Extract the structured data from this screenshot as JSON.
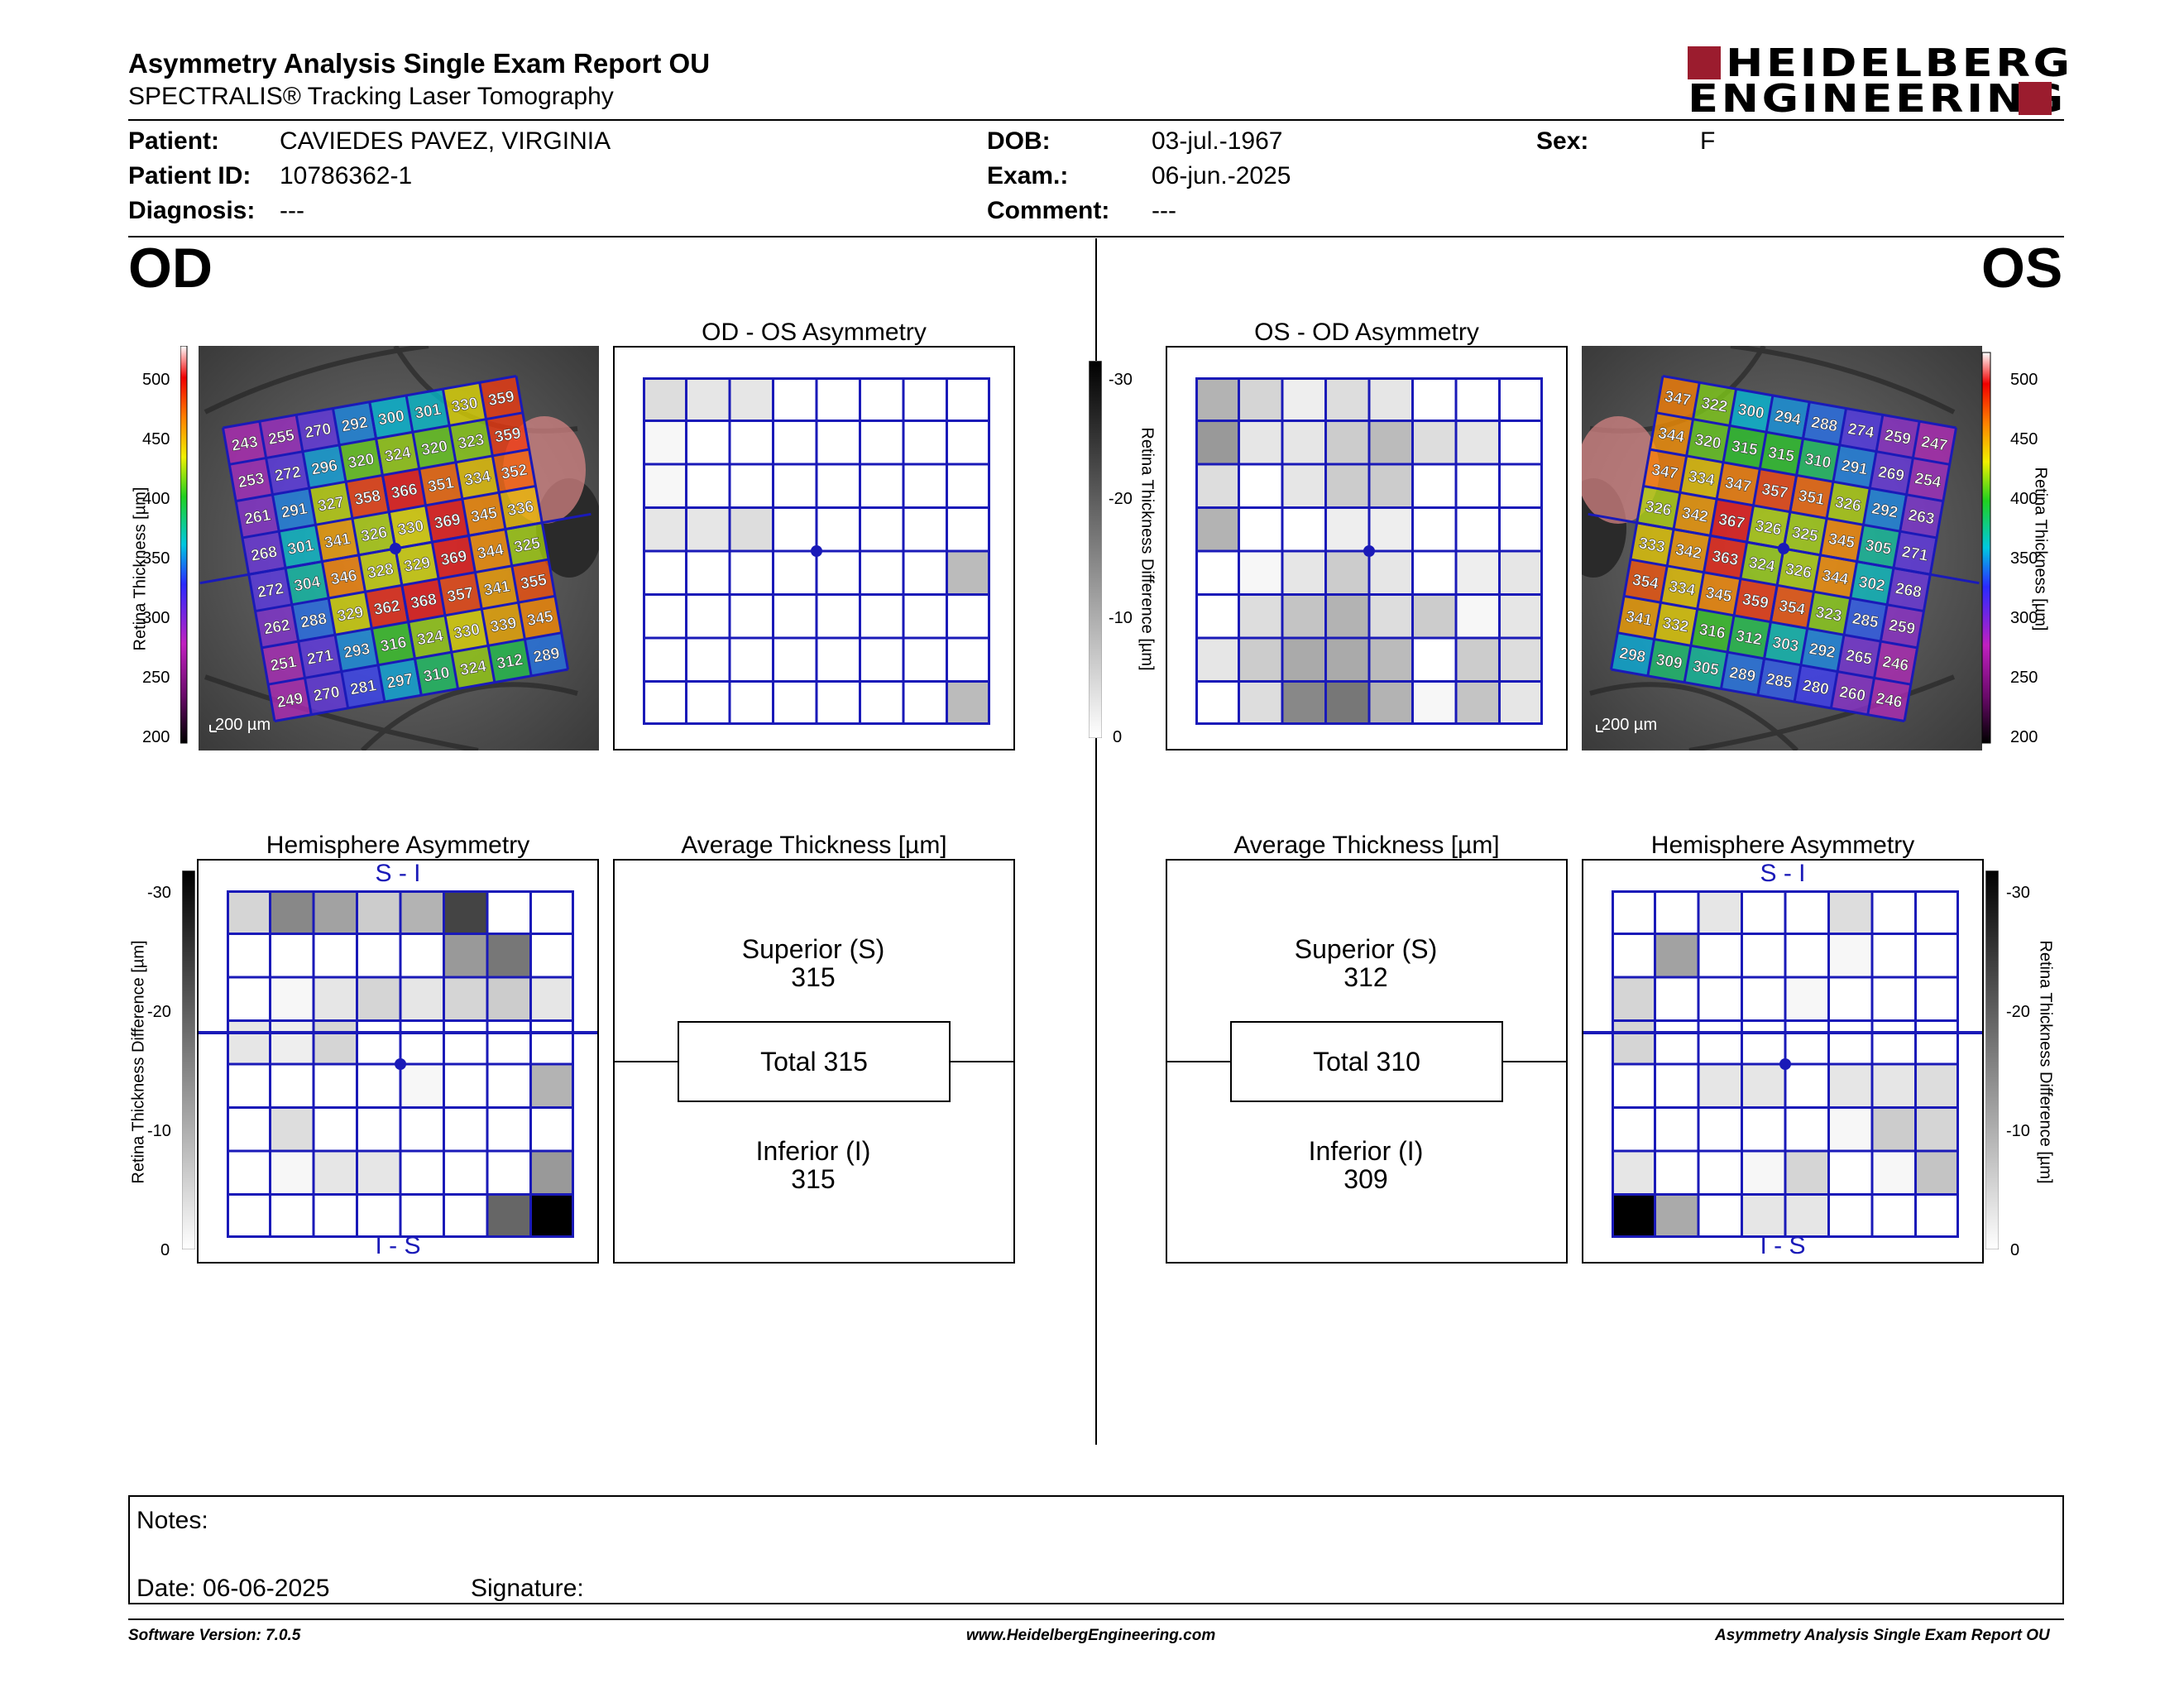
{
  "header": {
    "title": "Asymmetry Analysis Single Exam Report OU",
    "subtitle": "SPECTRALIS® Tracking Laser Tomography",
    "logo_line1": "HEIDELBERG",
    "logo_line2": "ENGINEERING"
  },
  "patient": {
    "patient_label": "Patient:",
    "patient_value": "CAVIEDES PAVEZ, VIRGINIA",
    "id_label": "Patient ID:",
    "id_value": "10786362-1",
    "diagnosis_label": "Diagnosis:",
    "diagnosis_value": "---",
    "dob_label": "DOB:",
    "dob_value": "03-jul.-1967",
    "exam_label": "Exam.:",
    "exam_value": "06-jun.-2025",
    "comment_label": "Comment:",
    "comment_value": "---",
    "sex_label": "Sex:",
    "sex_value": "F"
  },
  "od": {
    "eye_label": "OD",
    "asym_title": "OD - OS Asymmetry",
    "avg_title": "Average Thickness [µm]",
    "hemi_title": "Hemisphere Asymmetry",
    "superior_label": "Superior (S)",
    "superior_value": "315",
    "total_label": "Total 315",
    "inferior_label": "Inferior (I)",
    "inferior_value": "315",
    "hemi_top": "S - I",
    "hemi_bottom": "I - S",
    "scale_bar": "200 µm",
    "thickness_grid": [
      [
        243,
        255,
        270,
        292,
        300,
        301,
        330,
        359
      ],
      [
        253,
        272,
        296,
        320,
        324,
        320,
        323,
        359
      ],
      [
        261,
        291,
        327,
        358,
        366,
        351,
        334,
        352
      ],
      [
        268,
        301,
        341,
        326,
        330,
        369,
        345,
        336
      ],
      [
        272,
        304,
        346,
        328,
        329,
        369,
        344,
        325
      ],
      [
        262,
        288,
        329,
        362,
        368,
        357,
        341,
        355
      ],
      [
        251,
        271,
        293,
        316,
        324,
        330,
        339,
        345
      ],
      [
        249,
        270,
        281,
        297,
        310,
        324,
        312,
        289
      ]
    ],
    "asym_grid": [
      [
        4,
        3,
        3,
        0,
        0,
        0,
        0,
        0
      ],
      [
        1,
        0,
        0,
        0,
        0,
        0,
        0,
        0
      ],
      [
        1,
        0,
        0,
        0,
        0,
        0,
        0,
        0
      ],
      [
        3,
        3,
        4,
        0,
        0,
        0,
        0,
        0
      ],
      [
        0,
        0,
        0,
        0,
        0,
        0,
        0,
        8
      ],
      [
        0,
        0,
        0,
        0,
        0,
        0,
        0,
        0
      ],
      [
        0,
        0,
        0,
        0,
        0,
        0,
        0,
        0
      ],
      [
        0,
        0,
        0,
        0,
        0,
        0,
        0,
        8
      ]
    ],
    "hemi_grid": [
      [
        5,
        14,
        11,
        6,
        9,
        22,
        0,
        0
      ],
      [
        0,
        0,
        0,
        0,
        0,
        12,
        16,
        0
      ],
      [
        0,
        1,
        3,
        5,
        3,
        5,
        6,
        3
      ],
      [
        3,
        2,
        5,
        0,
        0,
        0,
        0,
        0
      ],
      [
        0,
        0,
        0,
        0,
        1,
        0,
        0,
        9
      ],
      [
        0,
        4,
        0,
        0,
        0,
        0,
        0,
        0
      ],
      [
        0,
        1,
        3,
        3,
        0,
        0,
        0,
        12
      ],
      [
        0,
        0,
        0,
        0,
        0,
        0,
        18,
        30
      ]
    ]
  },
  "os": {
    "eye_label": "OS",
    "asym_title": "OS - OD Asymmetry",
    "avg_title": "Average Thickness [µm]",
    "hemi_title": "Hemisphere Asymmetry",
    "superior_label": "Superior (S)",
    "superior_value": "312",
    "total_label": "Total 310",
    "inferior_label": "Inferior (I)",
    "inferior_value": "309",
    "hemi_top": "S - I",
    "hemi_bottom": "I - S",
    "scale_bar": "200 µm",
    "thickness_grid": [
      [
        347,
        322,
        300,
        294,
        288,
        274,
        259,
        247
      ],
      [
        344,
        320,
        315,
        315,
        310,
        291,
        269,
        254
      ],
      [
        347,
        334,
        347,
        357,
        351,
        326,
        292,
        263
      ],
      [
        326,
        342,
        367,
        326,
        325,
        345,
        305,
        271
      ],
      [
        333,
        342,
        363,
        324,
        326,
        344,
        302,
        268
      ],
      [
        354,
        334,
        345,
        359,
        354,
        323,
        285,
        259
      ],
      [
        341,
        332,
        316,
        312,
        303,
        292,
        265,
        246
      ],
      [
        298,
        309,
        305,
        289,
        285,
        280,
        260,
        246
      ]
    ],
    "asym_grid": [
      [
        9,
        5,
        2,
        4,
        3,
        0,
        0,
        0
      ],
      [
        12,
        3,
        3,
        6,
        8,
        4,
        3,
        0
      ],
      [
        4,
        0,
        3,
        6,
        6,
        0,
        0,
        0
      ],
      [
        9,
        0,
        0,
        2,
        2,
        0,
        0,
        0
      ],
      [
        0,
        1,
        3,
        6,
        3,
        0,
        2,
        3
      ],
      [
        0,
        4,
        7,
        9,
        4,
        6,
        1,
        3
      ],
      [
        3,
        6,
        10,
        10,
        8,
        0,
        6,
        4
      ],
      [
        0,
        4,
        14,
        16,
        9,
        1,
        7,
        3
      ]
    ],
    "hemi_grid": [
      [
        0,
        0,
        3,
        0,
        0,
        4,
        0,
        0
      ],
      [
        0,
        11,
        0,
        0,
        0,
        1,
        0,
        0
      ],
      [
        5,
        0,
        0,
        0,
        1,
        0,
        0,
        0
      ],
      [
        5,
        0,
        0,
        0,
        0,
        0,
        0,
        0
      ],
      [
        0,
        0,
        3,
        3,
        0,
        3,
        3,
        4
      ],
      [
        0,
        0,
        0,
        0,
        0,
        1,
        6,
        5
      ],
      [
        3,
        0,
        0,
        1,
        5,
        0,
        1,
        7
      ],
      [
        30,
        10,
        0,
        3,
        3,
        0,
        0,
        0
      ]
    ]
  },
  "scales": {
    "thickness_ticks": [
      "500",
      "450",
      "400",
      "350",
      "300",
      "250",
      "200"
    ],
    "thickness_axis_label": "Retina Thickness [µm]",
    "difference_ticks": [
      "-30",
      "-20",
      "-10",
      "0"
    ],
    "difference_axis_label": "Retina Thickness Difference [µm]"
  },
  "notes": {
    "notes_label": "Notes:",
    "date_label": "Date: 06-06-2025",
    "signature_label": "Signature:"
  },
  "footer": {
    "left": "Software Version: 7.0.5",
    "center": "www.HeidelbergEngineering.com",
    "right": "Asymmetry Analysis Single Exam Report OU"
  },
  "colors": {
    "grid_blue": "#1a1ab8",
    "logo_red": "#9b1c2e"
  }
}
